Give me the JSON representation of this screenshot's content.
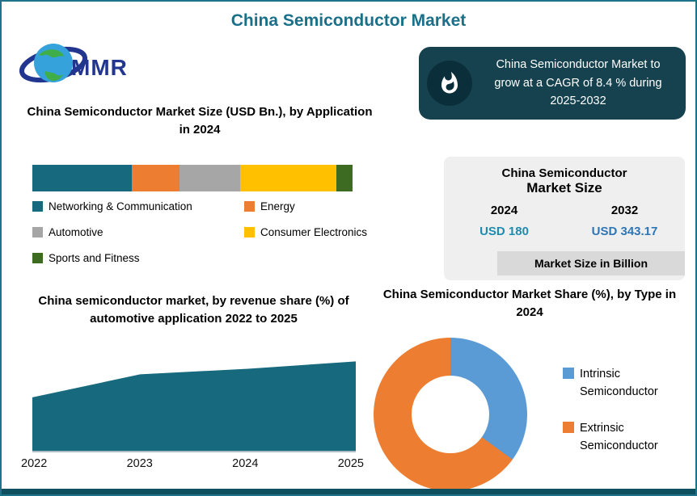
{
  "colors": {
    "accent_teal": "#1a7089",
    "cagr_box_bg": "#15424e",
    "cagr_circle_bg": "#0b2f3a",
    "border": "#1e7389",
    "bottom_strip": "#0f5060",
    "value_2024_color": "#1d8cb0",
    "value_2032_color": "#2e75b6"
  },
  "header": {
    "title": "China Semiconductor Market"
  },
  "logo": {
    "text": "MMR"
  },
  "cagr_box": {
    "text": "China Semiconductor Market to grow at a CAGR of 8.4 % during 2025-2032"
  },
  "market_size_box": {
    "title_line1": "China Semiconductor",
    "title_line2": "Market Size",
    "years": [
      "2024",
      "2032"
    ],
    "values": [
      "USD 180",
      "USD 343.17"
    ],
    "footer": "Market Size in Billion"
  },
  "chart_data": [
    {
      "type": "bar",
      "variant": "horizontal-stacked",
      "title": "China Semiconductor Market Size (USD Bn.), by Application in 2024",
      "segments": [
        {
          "label": "Networking & Communication",
          "value": 31,
          "color": "#17697d"
        },
        {
          "label": "Energy",
          "value": 15,
          "color": "#ed7d31"
        },
        {
          "label": "Automotive",
          "value": 19,
          "color": "#a6a6a6"
        },
        {
          "label": "Consumer Electronics",
          "value": 30,
          "color": "#ffc000"
        },
        {
          "label": "Sports and Fitness",
          "value": 5,
          "color": "#3e6b22"
        }
      ],
      "legend_position": "below"
    },
    {
      "type": "area",
      "title": "China semiconductor market, by revenue share (%) of automotive application 2022 to 2025",
      "x": [
        "2022",
        "2023",
        "2024",
        "2025"
      ],
      "values": [
        58,
        83,
        89,
        97
      ],
      "ylim": [
        0,
        100
      ],
      "color": "#17697d",
      "grid": false
    },
    {
      "type": "pie",
      "variant": "donut",
      "title": "China Semiconductor Market Share (%), by Type in 2024",
      "slices": [
        {
          "label": "Intrinsic Semiconductor",
          "value": 35,
          "color": "#5b9bd5"
        },
        {
          "label": "Extrinsic Semiconductor",
          "value": 65,
          "color": "#ed7d31"
        }
      ],
      "legend_position": "right"
    }
  ]
}
